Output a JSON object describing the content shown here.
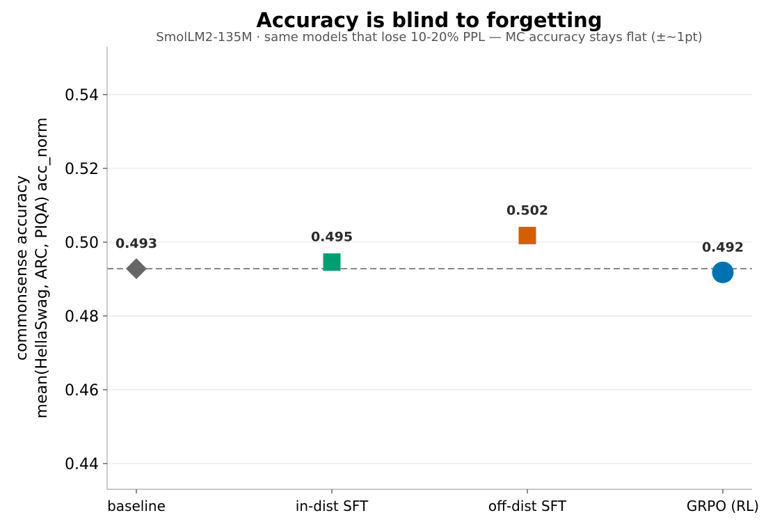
{
  "chart_data": {
    "type": "scatter",
    "title": "Accuracy is blind to forgetting",
    "subtitle": "SmolLM2-135M · same models that lose 10-20% PPL — MC accuracy stays flat (±~1pt)",
    "ylabel_line1": "commonsense accuracy",
    "ylabel_line2": "mean(HellaSwag, ARC, PIQA)  acc_norm",
    "xlabel": "",
    "ylim": [
      0.433,
      0.553
    ],
    "yticks": [
      0.44,
      0.46,
      0.48,
      0.5,
      0.52,
      0.54
    ],
    "grid": "horizontal",
    "reference_line": {
      "value": 0.4928,
      "style": "dashed",
      "color": "#888888"
    },
    "categories": [
      "baseline",
      "in-dist SFT",
      "off-dist SFT",
      "GRPO (RL)"
    ],
    "points": [
      {
        "category": "baseline",
        "value": 0.4928,
        "label": "0.493",
        "marker": "diamond",
        "color": "#666666"
      },
      {
        "category": "in-dist SFT",
        "value": 0.4946,
        "label": "0.495",
        "marker": "square",
        "color": "#009E73"
      },
      {
        "category": "off-dist SFT",
        "value": 0.5018,
        "label": "0.502",
        "marker": "square",
        "color": "#D55E00"
      },
      {
        "category": "GRPO (RL)",
        "value": 0.4918,
        "label": "0.492",
        "marker": "circle",
        "color": "#0072B2"
      }
    ]
  }
}
